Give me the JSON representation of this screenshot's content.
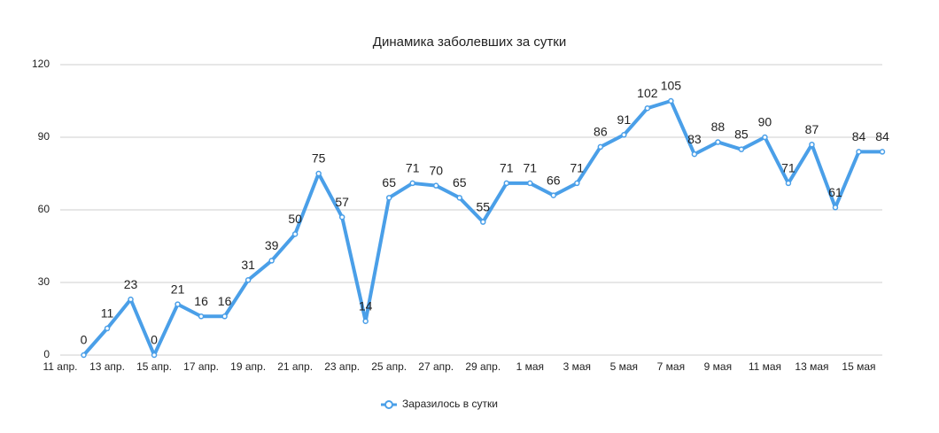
{
  "chart_data": {
    "type": "line",
    "title": "Динамика заболевших за сутки",
    "categories": [
      "11 апр.",
      null,
      "13 апр.",
      null,
      "15 апр.",
      null,
      "17 апр.",
      null,
      "19 апр.",
      null,
      "21 апр.",
      null,
      "23 апр.",
      null,
      "25 апр.",
      null,
      "27 апр.",
      null,
      "29 апр.",
      null,
      "1 мая",
      null,
      "3 мая",
      null,
      "5 мая",
      null,
      "7 мая",
      null,
      "9 мая",
      null,
      "11 мая",
      null,
      "13 мая",
      null,
      "15 мая",
      null
    ],
    "series": [
      {
        "name": "Заразилось в сутки",
        "color": "#4a9fe8",
        "values": [
          null,
          0,
          11,
          23,
          0,
          21,
          16,
          16,
          31,
          39,
          50,
          75,
          57,
          14,
          65,
          71,
          70,
          65,
          55,
          71,
          71,
          66,
          71,
          86,
          91,
          102,
          105,
          83,
          88,
          85,
          90,
          71,
          87,
          61,
          84,
          84
        ]
      }
    ],
    "ylim": [
      0,
      120
    ],
    "yticks": [
      0,
      30,
      60,
      90,
      120
    ],
    "grid": true,
    "legend": "bottom"
  }
}
